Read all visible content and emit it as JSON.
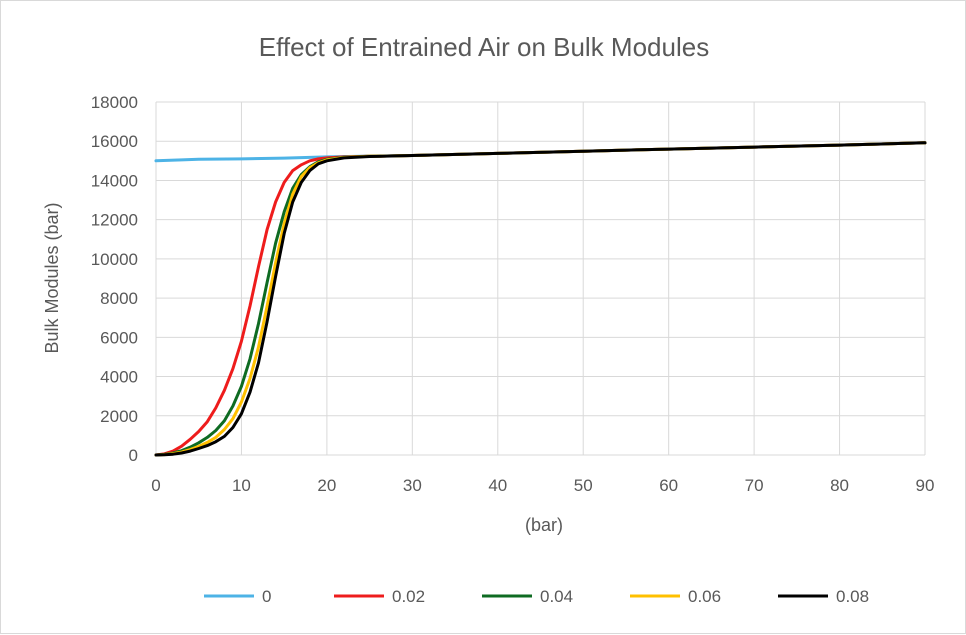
{
  "chart_data": {
    "type": "line",
    "title": "Effect of Entrained Air on Bulk Modules",
    "xlabel": "(bar)",
    "ylabel": "Bulk Modules  (bar)",
    "xlim": [
      0,
      90
    ],
    "ylim": [
      0,
      18000
    ],
    "x_ticks": [
      0,
      10,
      20,
      30,
      40,
      50,
      60,
      70,
      80,
      90
    ],
    "y_ticks": [
      0,
      2000,
      4000,
      6000,
      8000,
      10000,
      12000,
      14000,
      16000,
      18000
    ],
    "x_tick_labels": [
      "0",
      "10",
      "20",
      "30",
      "40",
      "50",
      "60",
      "70",
      "80",
      "90"
    ],
    "y_tick_labels": [
      "0",
      "2000",
      "4000",
      "6000",
      "8000",
      "10000",
      "12000",
      "14000",
      "16000",
      "18000"
    ],
    "grid": "horizontal and vertical major gridlines",
    "legend_position": "bottom",
    "series": [
      {
        "name": "0",
        "color": "#4db3e6",
        "x": [
          0,
          3,
          5,
          10,
          15,
          20,
          25,
          30
        ],
        "y": [
          15000,
          15050,
          15080,
          15100,
          15140,
          15200,
          15240,
          15270
        ]
      },
      {
        "name": "0.02",
        "color": "#ee1c1c",
        "x": [
          0,
          1,
          2,
          3,
          4,
          5,
          6,
          7,
          8,
          9,
          10,
          11,
          12,
          13,
          14,
          15,
          16,
          17,
          18,
          19,
          20,
          22,
          25,
          30,
          40,
          50,
          60,
          70,
          80,
          90
        ],
        "y": [
          0,
          60,
          200,
          450,
          800,
          1200,
          1700,
          2400,
          3300,
          4400,
          5800,
          7600,
          9600,
          11500,
          12900,
          13900,
          14500,
          14800,
          15000,
          15100,
          15150,
          15200,
          15230,
          15270,
          15380,
          15490,
          15600,
          15700,
          15800,
          15920
        ]
      },
      {
        "name": "0.04",
        "color": "#0e6b22",
        "x": [
          0,
          1,
          2,
          3,
          4,
          5,
          6,
          7,
          8,
          9,
          10,
          11,
          12,
          13,
          14,
          15,
          16,
          17,
          18,
          19,
          20,
          22,
          25,
          30,
          40,
          50,
          60,
          70,
          80,
          90
        ],
        "y": [
          0,
          30,
          100,
          220,
          400,
          620,
          900,
          1250,
          1750,
          2500,
          3500,
          4900,
          6700,
          8800,
          10800,
          12400,
          13600,
          14300,
          14700,
          14950,
          15080,
          15180,
          15230,
          15270,
          15380,
          15490,
          15600,
          15700,
          15800,
          15920
        ]
      },
      {
        "name": "0.06",
        "color": "#ffc000",
        "x": [
          0,
          1,
          2,
          3,
          4,
          5,
          6,
          7,
          8,
          9,
          10,
          11,
          12,
          13,
          14,
          15,
          16,
          17,
          18,
          19,
          20,
          22,
          25,
          30,
          40,
          50,
          60,
          70,
          80,
          90
        ],
        "y": [
          0,
          20,
          70,
          150,
          280,
          440,
          640,
          900,
          1300,
          1850,
          2700,
          3900,
          5500,
          7600,
          9800,
          11800,
          13300,
          14200,
          14650,
          14900,
          15050,
          15170,
          15230,
          15270,
          15380,
          15490,
          15600,
          15700,
          15800,
          15920
        ]
      },
      {
        "name": "0.08",
        "color": "#000000",
        "x": [
          0,
          1,
          2,
          3,
          4,
          5,
          6,
          7,
          8,
          9,
          10,
          11,
          12,
          13,
          14,
          15,
          16,
          17,
          18,
          19,
          20,
          22,
          25,
          30,
          40,
          50,
          60,
          70,
          80,
          90
        ],
        "y": [
          0,
          10,
          40,
          100,
          200,
          330,
          480,
          680,
          950,
          1400,
          2100,
          3200,
          4700,
          6800,
          9100,
          11300,
          12900,
          13900,
          14500,
          14850,
          15000,
          15150,
          15220,
          15270,
          15380,
          15490,
          15600,
          15700,
          15800,
          15920
        ]
      }
    ]
  }
}
